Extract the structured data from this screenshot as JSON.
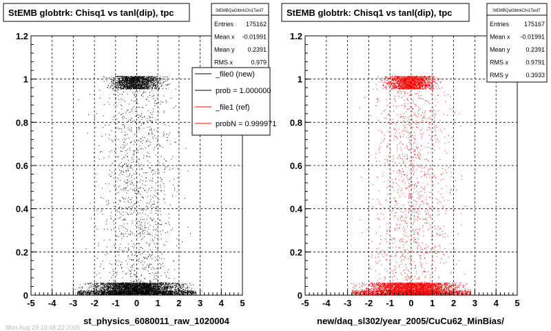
{
  "chart_data": [
    {
      "type": "scatter",
      "title": "StEMB globtrk: Chisq1 vs tanl(dip), tpc",
      "xlabel": "st_physics_6080011_raw_1020004",
      "ylabel": "",
      "xlim": [
        -5,
        5
      ],
      "ylim": [
        0,
        1.2
      ],
      "xticks": [
        "-5",
        "-4",
        "-3",
        "-2",
        "-1",
        "0",
        "1",
        "2",
        "3",
        "4",
        "5"
      ],
      "yticks": [
        "0",
        "0.2",
        "0.4",
        "0.6",
        "0.8",
        "1",
        "1.2"
      ],
      "grid": true,
      "marker_color": "#000000",
      "stats": {
        "name": "StEMBQaGlbtrkChi1TanlT",
        "rows": [
          {
            "label": "Entries",
            "value": "175162"
          },
          {
            "label": "Mean x",
            "value": "-0.01991"
          },
          {
            "label": "Mean y",
            "value": "0.2391"
          },
          {
            "label": "RMS x",
            "value": "0.979"
          }
        ]
      },
      "legend": {
        "placement": "top-right",
        "entries": [
          {
            "label": "_file0 (new)",
            "color": "#000000"
          },
          {
            "label": "prob = 1.000000",
            "color": "#000000"
          },
          {
            "label": "_file1 (ref)",
            "color": "#ff0000"
          },
          {
            "label": "probN = 0.999971",
            "color": "#ff0000"
          }
        ]
      },
      "footer": "Mon Aug 29 10:48:22 2005"
    },
    {
      "type": "scatter",
      "title": "StEMB globtrk: Chisq1 vs tanl(dip), tpc",
      "xlabel": "new/daq_sl302/year_2005/CuCu62_MinBias/",
      "ylabel": "",
      "xlim": [
        -5,
        5
      ],
      "ylim": [
        0,
        1.2
      ],
      "xticks": [
        "-5",
        "-4",
        "-3",
        "-2",
        "-1",
        "0",
        "1",
        "2",
        "3",
        "4",
        "5"
      ],
      "yticks": [
        "0",
        "0.2",
        "0.4",
        "0.6",
        "0.8",
        "1",
        "1.2"
      ],
      "grid": true,
      "marker_color": "#ff0000",
      "stats": {
        "name": "StEMBQaGlbtrkChi1TanlT",
        "rows": [
          {
            "label": "Entries",
            "value": "175167"
          },
          {
            "label": "Mean x",
            "value": "-0.01991"
          },
          {
            "label": "Mean y",
            "value": "0.2391"
          },
          {
            "label": "RMS x",
            "value": "0.9791"
          },
          {
            "label": "RMS y",
            "value": "0.3933"
          }
        ]
      }
    }
  ]
}
